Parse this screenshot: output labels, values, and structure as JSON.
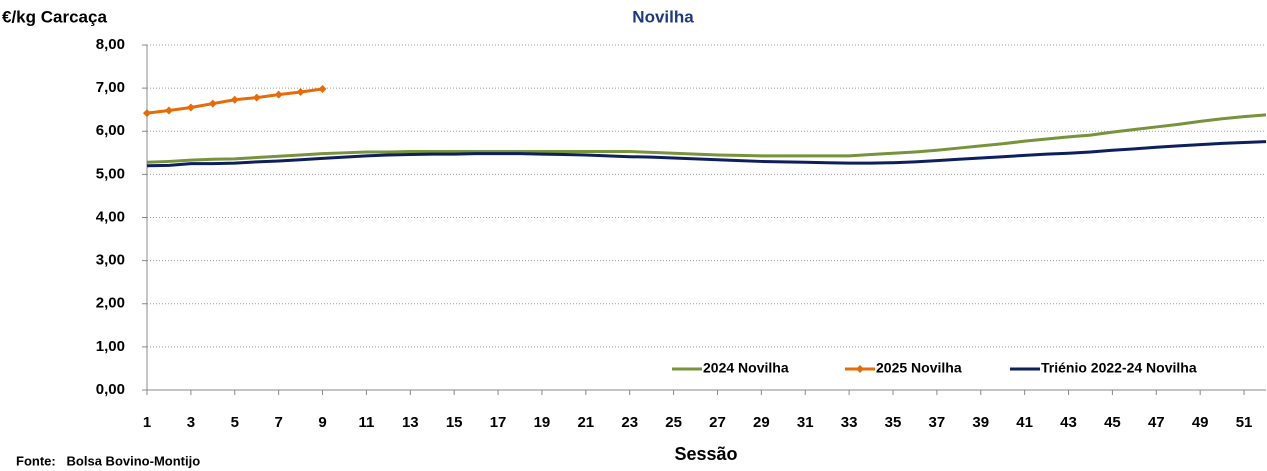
{
  "chart_data": {
    "type": "line",
    "title": "Novilha",
    "y_label": "€/kg Carcaça",
    "x_label": "Sessão",
    "source": "Fonte:   Bolsa Bovino-Montijo",
    "x": [
      1,
      2,
      3,
      4,
      5,
      6,
      7,
      8,
      9,
      10,
      11,
      12,
      13,
      14,
      15,
      16,
      17,
      18,
      19,
      20,
      21,
      22,
      23,
      24,
      25,
      26,
      27,
      28,
      29,
      30,
      31,
      32,
      33,
      34,
      35,
      36,
      37,
      38,
      39,
      40,
      41,
      42,
      43,
      44,
      45,
      46,
      47,
      48,
      49,
      50,
      51,
      52
    ],
    "xlim": [
      1,
      52
    ],
    "xticks": [
      1,
      3,
      5,
      7,
      9,
      11,
      13,
      15,
      17,
      19,
      21,
      23,
      25,
      27,
      29,
      31,
      33,
      35,
      37,
      39,
      41,
      43,
      45,
      47,
      49,
      51
    ],
    "ylim": [
      0,
      8
    ],
    "yticks": [
      {
        "value": 0,
        "label": "0,00"
      },
      {
        "value": 1,
        "label": "1,00"
      },
      {
        "value": 2,
        "label": "2,00"
      },
      {
        "value": 3,
        "label": "3,00"
      },
      {
        "value": 4,
        "label": "4,00"
      },
      {
        "value": 5,
        "label": "5,00"
      },
      {
        "value": 6,
        "label": "6,00"
      },
      {
        "value": 7,
        "label": "7,00"
      },
      {
        "value": 8,
        "label": "8,00"
      }
    ],
    "grid": true,
    "legend": "bottom-right",
    "series": [
      {
        "name": "2024 Novilha",
        "color": "#77933c",
        "values": [
          5.28,
          5.3,
          5.33,
          5.35,
          5.36,
          5.39,
          5.42,
          5.45,
          5.48,
          5.5,
          5.52,
          5.52,
          5.53,
          5.53,
          5.53,
          5.53,
          5.53,
          5.53,
          5.53,
          5.53,
          5.53,
          5.53,
          5.53,
          5.51,
          5.49,
          5.47,
          5.45,
          5.44,
          5.43,
          5.43,
          5.43,
          5.43,
          5.43,
          5.46,
          5.49,
          5.52,
          5.56,
          5.61,
          5.66,
          5.71,
          5.77,
          5.82,
          5.87,
          5.91,
          5.98,
          6.04,
          6.1,
          6.16,
          6.23,
          6.29,
          6.34,
          6.38
        ]
      },
      {
        "name": "2025 Novilha",
        "color": "#e46c0a",
        "marker": "diamond",
        "values": [
          6.42,
          6.48,
          6.55,
          6.64,
          6.73,
          6.78,
          6.85,
          6.91,
          6.98,
          null,
          null,
          null,
          null,
          null,
          null,
          null,
          null,
          null,
          null,
          null,
          null,
          null,
          null,
          null,
          null,
          null,
          null,
          null,
          null,
          null,
          null,
          null,
          null,
          null,
          null,
          null,
          null,
          null,
          null,
          null,
          null,
          null,
          null,
          null,
          null,
          null,
          null,
          null,
          null,
          null,
          null,
          null
        ]
      },
      {
        "name": "Triénio 2022-24 Novilha",
        "color": "#0d1f5c",
        "values": [
          5.2,
          5.21,
          5.25,
          5.25,
          5.26,
          5.29,
          5.31,
          5.34,
          5.37,
          5.4,
          5.43,
          5.45,
          5.46,
          5.47,
          5.47,
          5.48,
          5.48,
          5.48,
          5.47,
          5.46,
          5.45,
          5.43,
          5.41,
          5.4,
          5.38,
          5.36,
          5.34,
          5.32,
          5.3,
          5.29,
          5.28,
          5.27,
          5.26,
          5.26,
          5.27,
          5.29,
          5.32,
          5.35,
          5.38,
          5.41,
          5.44,
          5.47,
          5.49,
          5.52,
          5.56,
          5.59,
          5.63,
          5.66,
          5.69,
          5.72,
          5.74,
          5.76
        ]
      }
    ]
  }
}
